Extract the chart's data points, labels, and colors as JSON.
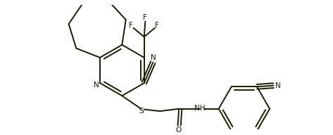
{
  "background": "#ffffff",
  "line_color": "#1a1a00",
  "lw": 1.4,
  "figsize": [
    4.73,
    1.92
  ],
  "dpi": 100,
  "xlim": [
    -2.6,
    3.0
  ],
  "ylim": [
    -1.05,
    1.05
  ]
}
